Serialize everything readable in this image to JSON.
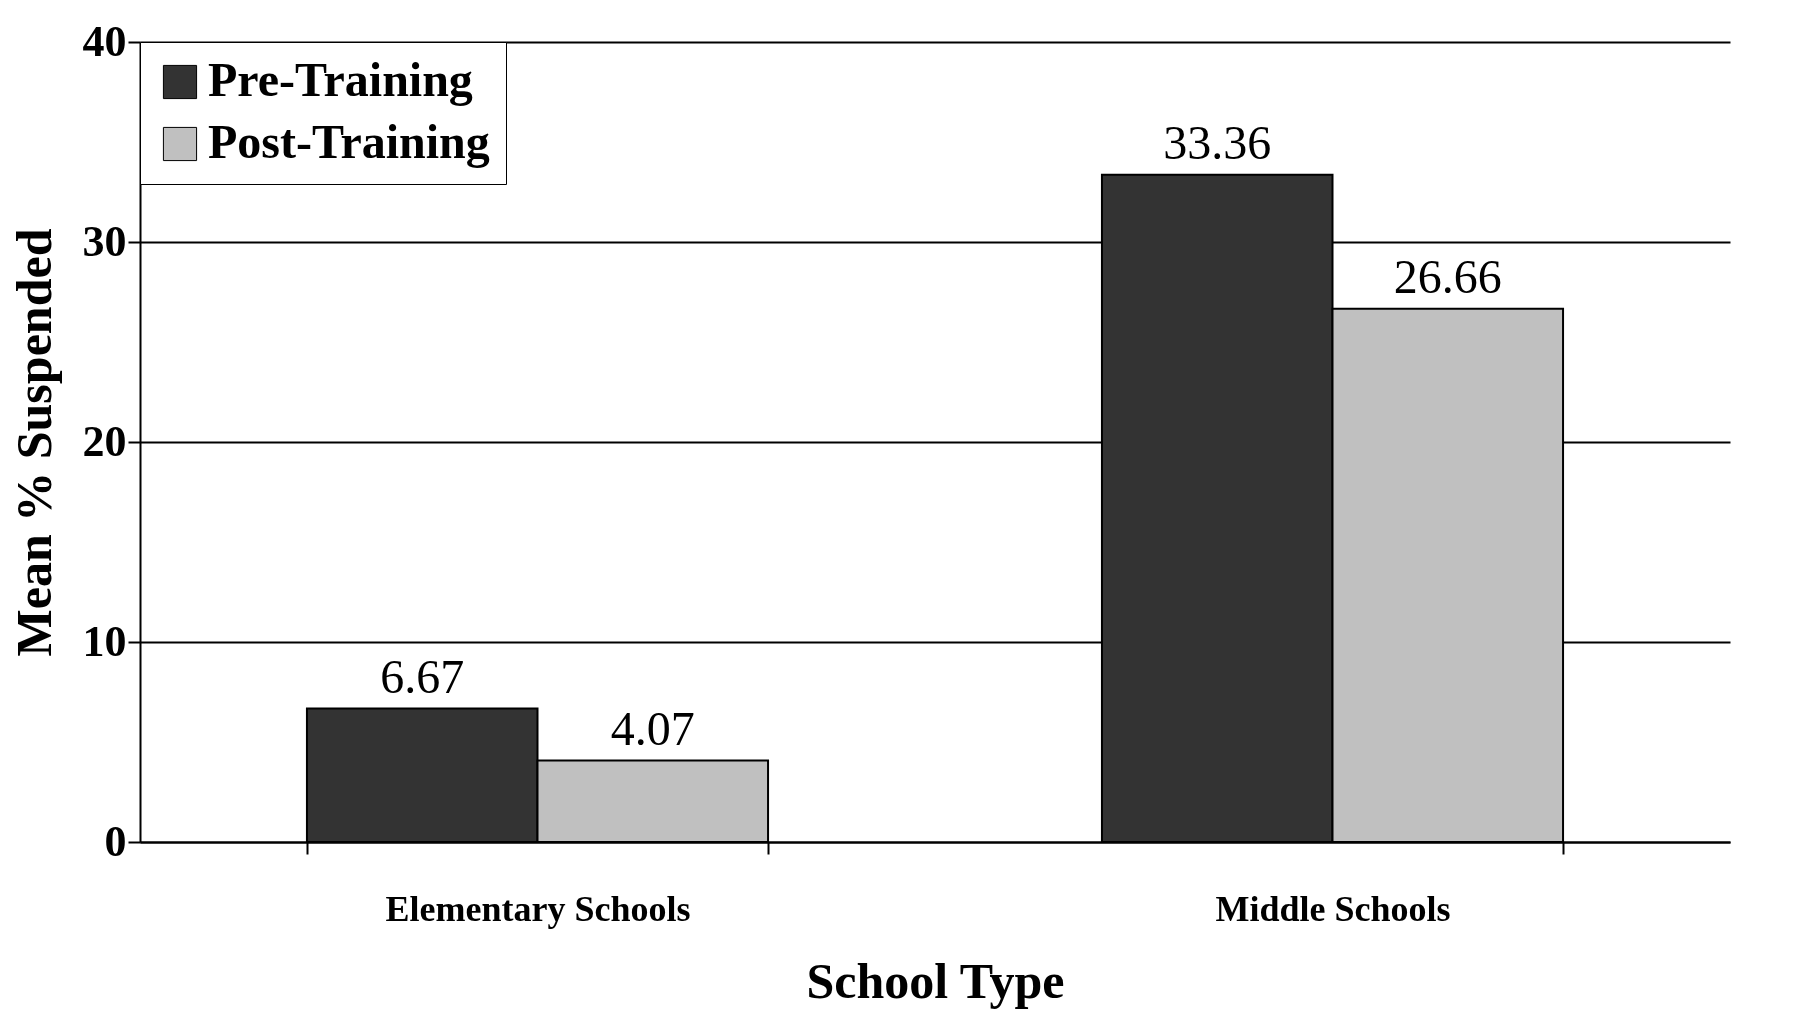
{
  "chart_data": {
    "type": "bar",
    "xlabel": "School Type",
    "ylabel": "Mean % Suspended",
    "categories": [
      "Elementary Schools",
      "Middle Schools"
    ],
    "series": [
      {
        "name": "Pre-Training",
        "color": "#333333",
        "values": [
          6.67,
          33.36
        ]
      },
      {
        "name": "Post-Training",
        "color": "#c0c0c0",
        "values": [
          4.07,
          26.66
        ]
      }
    ],
    "ylim": [
      0,
      40
    ],
    "yticks": [
      0,
      10,
      20,
      30,
      40
    ],
    "grid": "y",
    "legend": "top left",
    "data_labels": true
  }
}
